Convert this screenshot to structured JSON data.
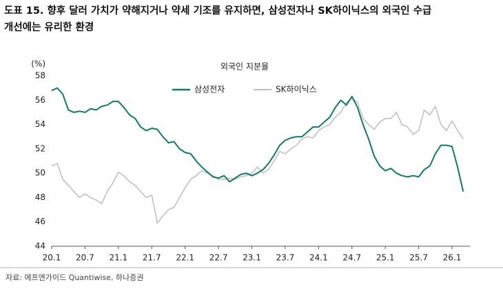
{
  "chart_data": {
    "type": "line",
    "header": [
      "도표 15. 향후 달러 가치가 약해지거나 약세 기조를 유지하면, 삼성전자나 SK하이닉스의 외국인 수급",
      "개선에는 유리한 환경"
    ],
    "title": "외국인 지분율",
    "y_unit": "(%)",
    "source": "자료: 에프앤가이드 Quantiwise, 하나증권",
    "categories": [
      "20.1",
      null,
      null,
      null,
      null,
      null,
      "20.7",
      null,
      null,
      null,
      null,
      null,
      "21.1",
      null,
      null,
      null,
      null,
      null,
      "21.7",
      null,
      null,
      null,
      null,
      null,
      "22.1",
      null,
      null,
      null,
      null,
      null,
      "22.7",
      null,
      null,
      null,
      null,
      null,
      "23.1",
      null,
      null,
      null,
      null,
      null,
      "23.7",
      null,
      null,
      null,
      null,
      null,
      "24.1",
      null,
      null,
      null,
      null,
      null,
      "24.7",
      null,
      null,
      null,
      null,
      null,
      "25.1",
      null,
      null,
      null,
      null,
      null,
      "25.7",
      null,
      null,
      null,
      null,
      null,
      "26.1",
      null,
      null
    ],
    "ylim": [
      44,
      58
    ],
    "yticks": [
      44,
      46,
      48,
      50,
      52,
      54,
      56,
      58
    ],
    "series": [
      {
        "name": "삼성전자",
        "color": "#0e7a6a",
        "values": [
          56.8,
          57.0,
          56.5,
          55.2,
          55.0,
          55.1,
          55.0,
          55.3,
          55.2,
          55.5,
          55.6,
          55.9,
          55.9,
          55.4,
          54.8,
          54.5,
          53.8,
          53.5,
          53.7,
          53.6,
          53.0,
          52.5,
          52.6,
          52.0,
          51.7,
          51.6,
          51.0,
          50.5,
          50.1,
          49.7,
          49.6,
          49.8,
          49.3,
          49.6,
          49.9,
          50.0,
          49.8,
          50.0,
          50.3,
          50.8,
          51.5,
          52.3,
          52.7,
          52.9,
          53.0,
          53.0,
          53.4,
          53.8,
          53.8,
          54.2,
          54.6,
          55.4,
          56.0,
          55.6,
          56.3,
          55.4,
          54.0,
          52.8,
          51.4,
          50.6,
          50.2,
          50.4,
          50.0,
          49.8,
          49.7,
          49.8,
          49.7,
          50.3,
          50.6,
          51.6,
          52.3,
          52.3,
          52.2,
          50.5,
          48.5
        ]
      },
      {
        "name": "SK하이닉스",
        "color": "#bdbdbd",
        "values": [
          50.6,
          50.8,
          49.5,
          49.0,
          48.5,
          48.0,
          48.3,
          48.0,
          47.8,
          47.5,
          48.5,
          49.2,
          50.1,
          49.8,
          49.3,
          49.0,
          48.5,
          48.0,
          48.2,
          45.9,
          46.5,
          47.0,
          47.2,
          48.0,
          48.8,
          49.5,
          49.8,
          50.2,
          50.0,
          49.8,
          49.5,
          49.5,
          49.6,
          49.5,
          49.7,
          49.8,
          50.0,
          50.5,
          50.0,
          50.3,
          51.0,
          51.8,
          51.6,
          52.0,
          52.3,
          52.8,
          53.0,
          52.9,
          53.5,
          53.8,
          54.0,
          54.6,
          55.0,
          55.8,
          56.2,
          55.8,
          54.5,
          54.0,
          53.6,
          54.2,
          54.5,
          54.5,
          55.0,
          54.0,
          53.8,
          53.2,
          53.5,
          55.2,
          54.8,
          55.5,
          54.0,
          53.5,
          54.3,
          53.5,
          52.8
        ]
      }
    ],
    "legend": "top"
  }
}
